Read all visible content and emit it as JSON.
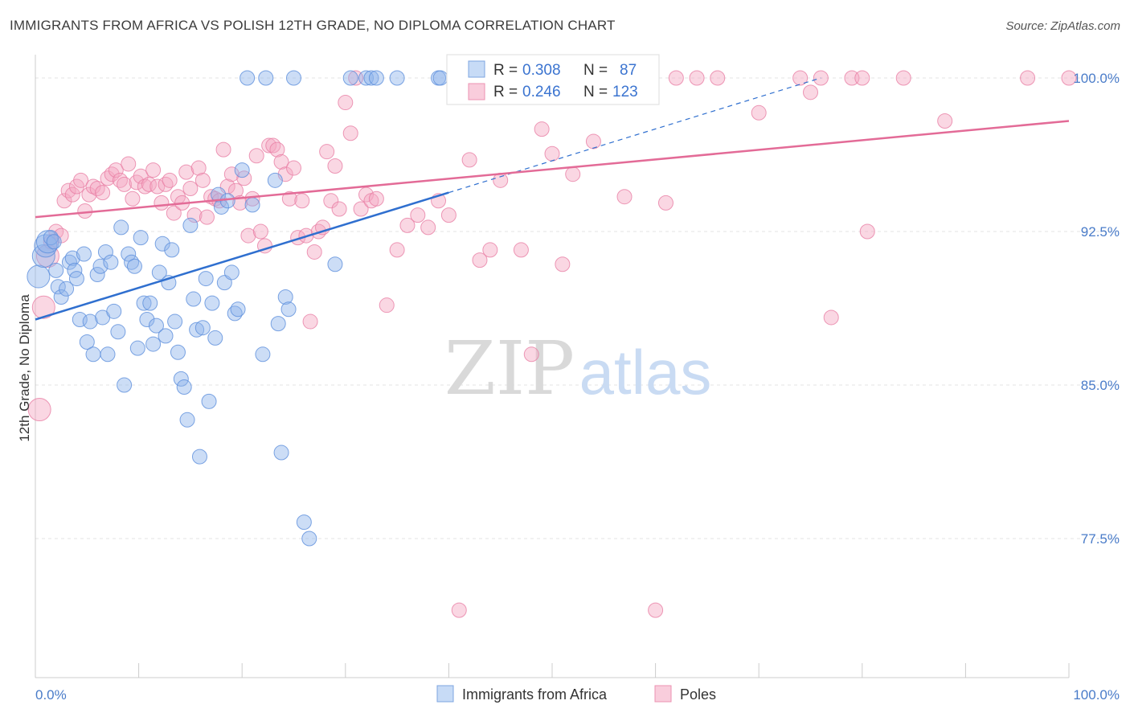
{
  "title": "IMMIGRANTS FROM AFRICA VS POLISH 12TH GRADE, NO DIPLOMA CORRELATION CHART",
  "source": "Source: ZipAtlas.com",
  "watermark": {
    "zip": "ZIP",
    "atlas": "atlas"
  },
  "colors": {
    "blue": "#8fb3ea",
    "blue_stroke": "#5d8fdc",
    "blue_line": "#2f6fcf",
    "pink": "#f4a7c1",
    "pink_stroke": "#e97fa5",
    "pink_line": "#e36b97"
  },
  "chart_data": {
    "type": "scatter",
    "xlabel": "",
    "ylabel": "12th Grade, No Diploma",
    "xlim": [
      0,
      100
    ],
    "ylim": [
      71.0,
      101.5
    ],
    "y_ticks": [
      {
        "value": 100.0,
        "label": "100.0%"
      },
      {
        "value": 92.5,
        "label": "92.5%"
      },
      {
        "value": 85.0,
        "label": "85.0%"
      },
      {
        "value": 77.5,
        "label": "77.5%"
      }
    ],
    "x_tick_labels": {
      "min": "0.0%",
      "max": "100.0%"
    },
    "legend_box": {
      "rows": [
        {
          "r_label": "R =",
          "r_value": "0.308",
          "n_label": "N =",
          "n_value": "87"
        },
        {
          "r_label": "R =",
          "r_value": "0.246",
          "n_label": "N =",
          "n_value": "123"
        }
      ]
    },
    "series": [
      {
        "name": "Immigrants from Africa",
        "trend": {
          "x0": 0,
          "y0": 88.2,
          "x1": 40,
          "y1": 94.4,
          "dash_to_x": 76,
          "dash_to_y": 100.0
        },
        "points": [
          [
            0.3,
            90.3
          ],
          [
            0.8,
            91.3
          ],
          [
            1.0,
            91.8
          ],
          [
            1.2,
            92.0
          ],
          [
            1.5,
            92.2
          ],
          [
            1.8,
            92.0
          ],
          [
            2.0,
            90.6
          ],
          [
            2.2,
            89.8
          ],
          [
            2.5,
            89.3
          ],
          [
            3.0,
            89.7
          ],
          [
            3.3,
            91.0
          ],
          [
            3.6,
            91.2
          ],
          [
            3.8,
            90.6
          ],
          [
            4.0,
            90.2
          ],
          [
            4.3,
            88.2
          ],
          [
            4.7,
            91.4
          ],
          [
            5.0,
            87.1
          ],
          [
            5.3,
            88.1
          ],
          [
            5.6,
            86.5
          ],
          [
            6.0,
            90.4
          ],
          [
            6.3,
            90.8
          ],
          [
            6.5,
            88.3
          ],
          [
            6.8,
            91.5
          ],
          [
            7.0,
            86.5
          ],
          [
            7.3,
            91.0
          ],
          [
            7.6,
            88.6
          ],
          [
            8.0,
            87.6
          ],
          [
            8.3,
            92.7
          ],
          [
            8.6,
            85.0
          ],
          [
            9.0,
            91.4
          ],
          [
            9.3,
            91.0
          ],
          [
            9.6,
            90.8
          ],
          [
            9.9,
            86.8
          ],
          [
            10.2,
            92.2
          ],
          [
            10.5,
            89.0
          ],
          [
            10.8,
            88.2
          ],
          [
            11.1,
            89.0
          ],
          [
            11.4,
            87.0
          ],
          [
            11.7,
            87.9
          ],
          [
            12.0,
            90.5
          ],
          [
            12.3,
            91.9
          ],
          [
            12.6,
            87.4
          ],
          [
            12.9,
            90.0
          ],
          [
            13.2,
            91.6
          ],
          [
            13.5,
            88.1
          ],
          [
            13.8,
            86.6
          ],
          [
            14.1,
            85.3
          ],
          [
            14.4,
            84.9
          ],
          [
            14.7,
            83.3
          ],
          [
            15.0,
            92.8
          ],
          [
            15.3,
            89.2
          ],
          [
            15.6,
            87.7
          ],
          [
            15.9,
            81.5
          ],
          [
            16.2,
            87.8
          ],
          [
            16.5,
            90.2
          ],
          [
            16.8,
            84.2
          ],
          [
            17.1,
            89.0
          ],
          [
            17.4,
            87.3
          ],
          [
            17.7,
            94.3
          ],
          [
            18.0,
            93.7
          ],
          [
            18.3,
            90.0
          ],
          [
            18.6,
            94.0
          ],
          [
            19.0,
            90.5
          ],
          [
            19.3,
            88.5
          ],
          [
            19.6,
            88.7
          ],
          [
            20.0,
            95.5
          ],
          [
            20.5,
            100.0
          ],
          [
            21.0,
            93.8
          ],
          [
            22.0,
            86.5
          ],
          [
            22.3,
            100.0
          ],
          [
            23.2,
            95.0
          ],
          [
            23.5,
            88.0
          ],
          [
            23.8,
            81.7
          ],
          [
            24.2,
            89.3
          ],
          [
            24.5,
            88.7
          ],
          [
            25.0,
            100.0
          ],
          [
            26.0,
            78.3
          ],
          [
            26.5,
            77.5
          ],
          [
            29.0,
            90.9
          ],
          [
            30.5,
            100.0
          ],
          [
            32.0,
            100.0
          ],
          [
            32.5,
            100.0
          ],
          [
            33.0,
            100.0
          ],
          [
            35.0,
            100.0
          ],
          [
            39.0,
            100.0
          ],
          [
            39.2,
            100.0
          ],
          [
            41.0,
            100.0
          ]
        ]
      },
      {
        "name": "Poles",
        "trend": {
          "x0": 0,
          "y0": 93.2,
          "x1": 100,
          "y1": 97.9
        },
        "points": [
          [
            0.4,
            83.8
          ],
          [
            0.8,
            88.8
          ],
          [
            1.2,
            91.3
          ],
          [
            1.5,
            92.0
          ],
          [
            2.0,
            92.5
          ],
          [
            2.5,
            92.3
          ],
          [
            2.8,
            94.0
          ],
          [
            3.2,
            94.5
          ],
          [
            3.6,
            94.3
          ],
          [
            4.0,
            94.7
          ],
          [
            4.4,
            95.0
          ],
          [
            4.8,
            93.5
          ],
          [
            5.2,
            94.3
          ],
          [
            5.6,
            94.7
          ],
          [
            6.0,
            94.6
          ],
          [
            6.5,
            94.4
          ],
          [
            7.0,
            95.1
          ],
          [
            7.4,
            95.3
          ],
          [
            7.8,
            95.5
          ],
          [
            8.2,
            95.0
          ],
          [
            8.6,
            94.8
          ],
          [
            9.0,
            95.8
          ],
          [
            9.4,
            94.1
          ],
          [
            9.8,
            94.9
          ],
          [
            10.2,
            95.2
          ],
          [
            10.6,
            94.7
          ],
          [
            11.0,
            94.8
          ],
          [
            11.4,
            95.5
          ],
          [
            11.8,
            94.7
          ],
          [
            12.2,
            93.9
          ],
          [
            12.6,
            94.8
          ],
          [
            13.0,
            95.0
          ],
          [
            13.4,
            93.4
          ],
          [
            13.8,
            94.2
          ],
          [
            14.2,
            93.9
          ],
          [
            14.6,
            95.4
          ],
          [
            15.0,
            94.6
          ],
          [
            15.4,
            93.3
          ],
          [
            15.8,
            95.6
          ],
          [
            16.2,
            95.0
          ],
          [
            16.6,
            93.2
          ],
          [
            17.0,
            94.2
          ],
          [
            17.4,
            94.1
          ],
          [
            17.8,
            94.0
          ],
          [
            18.2,
            96.5
          ],
          [
            18.6,
            94.7
          ],
          [
            19.0,
            95.3
          ],
          [
            19.4,
            94.5
          ],
          [
            19.8,
            93.9
          ],
          [
            20.2,
            95.1
          ],
          [
            20.6,
            92.3
          ],
          [
            21.0,
            94.1
          ],
          [
            21.4,
            96.2
          ],
          [
            21.8,
            92.5
          ],
          [
            22.2,
            91.8
          ],
          [
            22.6,
            96.7
          ],
          [
            23.0,
            96.7
          ],
          [
            23.4,
            96.5
          ],
          [
            23.8,
            95.9
          ],
          [
            24.2,
            95.3
          ],
          [
            24.6,
            94.1
          ],
          [
            25.0,
            95.6
          ],
          [
            25.4,
            92.2
          ],
          [
            25.8,
            94.0
          ],
          [
            26.2,
            92.3
          ],
          [
            26.6,
            88.1
          ],
          [
            27.0,
            91.5
          ],
          [
            27.4,
            92.5
          ],
          [
            27.8,
            92.7
          ],
          [
            28.2,
            96.4
          ],
          [
            28.6,
            94.0
          ],
          [
            29.0,
            95.7
          ],
          [
            29.4,
            93.6
          ],
          [
            30.0,
            98.8
          ],
          [
            30.5,
            97.3
          ],
          [
            31.0,
            100.0
          ],
          [
            31.5,
            93.6
          ],
          [
            32.0,
            94.3
          ],
          [
            32.5,
            94.0
          ],
          [
            33.0,
            94.1
          ],
          [
            34.0,
            88.9
          ],
          [
            35.0,
            91.6
          ],
          [
            36.0,
            92.8
          ],
          [
            37.0,
            93.3
          ],
          [
            38.0,
            92.7
          ],
          [
            39.0,
            94.0
          ],
          [
            40.0,
            93.3
          ],
          [
            41.0,
            74.0
          ],
          [
            42.0,
            96.0
          ],
          [
            43.0,
            91.1
          ],
          [
            44.0,
            91.6
          ],
          [
            45.0,
            95.0
          ],
          [
            46.0,
            100.0
          ],
          [
            47.0,
            91.6
          ],
          [
            48.0,
            86.5
          ],
          [
            49.0,
            97.5
          ],
          [
            50.0,
            96.3
          ],
          [
            51.0,
            90.9
          ],
          [
            52.0,
            95.3
          ],
          [
            53.0,
            100.0
          ],
          [
            54.0,
            96.9
          ],
          [
            55.0,
            100.0
          ],
          [
            56.0,
            100.0
          ],
          [
            57.0,
            94.2
          ],
          [
            58.0,
            100.0
          ],
          [
            59.0,
            100.0
          ],
          [
            60.0,
            74.0
          ],
          [
            61.0,
            93.9
          ],
          [
            62.0,
            100.0
          ],
          [
            64.0,
            100.0
          ],
          [
            66.0,
            100.0
          ],
          [
            70.0,
            98.3
          ],
          [
            74.0,
            100.0
          ],
          [
            75.0,
            99.3
          ],
          [
            76.0,
            100.0
          ],
          [
            77.0,
            88.3
          ],
          [
            79.0,
            100.0
          ],
          [
            80.0,
            100.0
          ],
          [
            80.5,
            92.5
          ],
          [
            84.0,
            100.0
          ],
          [
            88.0,
            97.9
          ],
          [
            96.0,
            100.0
          ],
          [
            100.0,
            100.0
          ]
        ]
      }
    ]
  }
}
